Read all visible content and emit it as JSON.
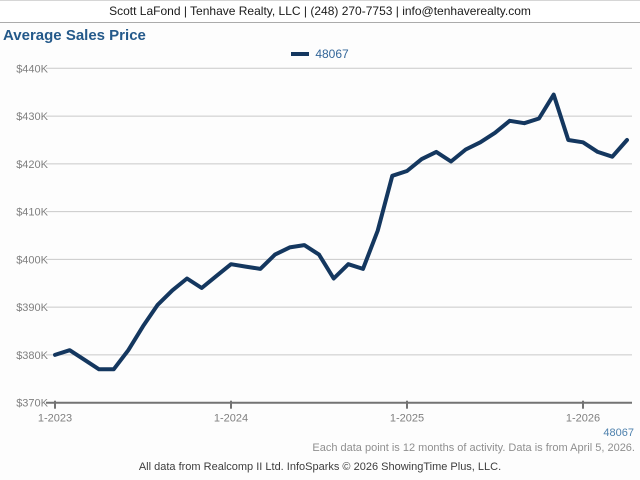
{
  "header": {
    "contact_line": "Scott LaFond | Tenhave Realty, LLC | (248) 270-7753 | info@tenhaverealty.com"
  },
  "title": "Average Sales Price",
  "legend": {
    "label": "48067"
  },
  "chart_data": {
    "type": "line",
    "title": "Average Sales Price",
    "x": [
      "1-2023",
      "2-2023",
      "3-2023",
      "4-2023",
      "5-2023",
      "6-2023",
      "7-2023",
      "8-2023",
      "9-2023",
      "10-2023",
      "11-2023",
      "12-2023",
      "1-2024",
      "2-2024",
      "3-2024",
      "4-2024",
      "5-2024",
      "6-2024",
      "7-2024",
      "8-2024",
      "9-2024",
      "10-2024",
      "11-2024",
      "12-2024",
      "1-2025",
      "2-2025",
      "3-2025",
      "4-2025",
      "5-2025",
      "6-2025",
      "7-2025",
      "8-2025",
      "9-2025",
      "10-2025",
      "11-2025",
      "12-2025",
      "1-2026",
      "2-2026",
      "3-2026",
      "4-2026"
    ],
    "series": [
      {
        "name": "48067",
        "color": "#14375f",
        "values": [
          380000,
          381000,
          379000,
          377000,
          377000,
          381000,
          386000,
          390500,
          393500,
          396000,
          394000,
          396500,
          399000,
          398500,
          398000,
          401000,
          402500,
          403000,
          401000,
          396000,
          399000,
          398000,
          406000,
          417500,
          418500,
          421000,
          422500,
          420500,
          423000,
          424500,
          426500,
          429000,
          428500,
          429500,
          434500,
          425000,
          424500,
          422500,
          421500,
          425000
        ]
      }
    ],
    "x_tick_labels": [
      "1-2023",
      "1-2024",
      "1-2025",
      "1-2026"
    ],
    "y_ticks": [
      "$440K",
      "$430K",
      "$420K",
      "$410K",
      "$400K",
      "$390K",
      "$380K",
      "$370K"
    ],
    "ytick_step": 10000,
    "ylim": [
      370000,
      440000
    ],
    "grid": "horizontal",
    "legend_position": "top-center"
  },
  "footer": {
    "zip_label": "48067",
    "note": "Each data point is 12 months of activity. Data is from April 5, 2026.",
    "attribution": "All data from Realcomp II Ltd. InfoSparks © 2026 ShowingTime Plus, LLC."
  },
  "colors": {
    "line": "#14375f",
    "title_text": "#24598a",
    "legend_label": "#336699",
    "axis_text": "#7f7f7f",
    "gridline": "#c9c9c9",
    "axis_line": "#737373",
    "zip_footer": "#4e81ad",
    "note_text": "#8f8f8f",
    "attribution_text": "#3d3d3d",
    "header_text": "#1a1a1a"
  }
}
